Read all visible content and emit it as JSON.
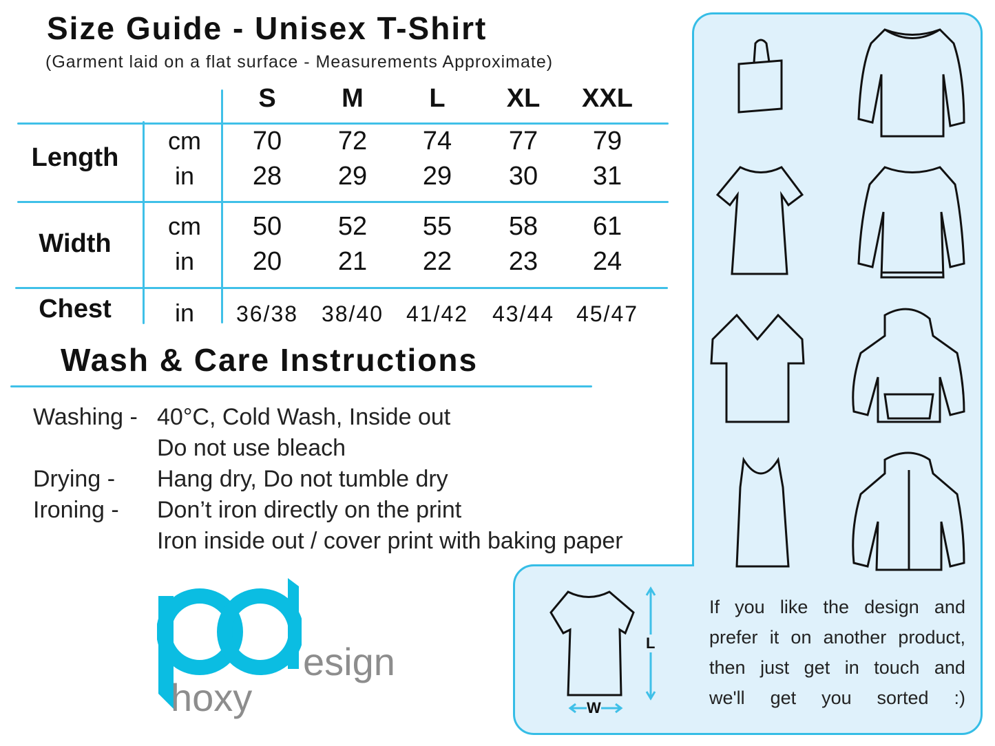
{
  "title": "Size Guide - Unisex T-Shirt",
  "subtitle": "(Garment laid on a flat surface - Measurements Approximate)",
  "sizes": [
    "S",
    "M",
    "L",
    "XL",
    "XXL"
  ],
  "rows": {
    "length": {
      "label": "Length",
      "cm_unit": "cm",
      "in_unit": "in",
      "cm": [
        "70",
        "72",
        "74",
        "77",
        "79"
      ],
      "in": [
        "28",
        "29",
        "29",
        "30",
        "31"
      ]
    },
    "width": {
      "label": "Width",
      "cm_unit": "cm",
      "in_unit": "in",
      "cm": [
        "50",
        "52",
        "55",
        "58",
        "61"
      ],
      "in": [
        "20",
        "21",
        "22",
        "23",
        "24"
      ]
    },
    "chest": {
      "label": "Chest",
      "in_unit": "in",
      "in": [
        "36/38",
        "38/40",
        "41/42",
        "43/44",
        "45/47"
      ]
    }
  },
  "care": {
    "heading": "Wash & Care Instructions",
    "items": [
      {
        "label": "Washing -",
        "value": "40°C, Cold Wash, Inside out"
      },
      {
        "label": "",
        "value": "Do not use bleach"
      },
      {
        "label": "Drying -",
        "value": "Hang dry, Do not tumble dry"
      },
      {
        "label": "Ironing -",
        "value": "Don’t iron directly on the print"
      },
      {
        "label": "",
        "value": "Iron inside out / cover print with baking paper"
      }
    ]
  },
  "logo": {
    "pd": "pd",
    "design": "esign",
    "phoxy": "hoxy"
  },
  "diagram": {
    "length_label": "L",
    "width_label": "W"
  },
  "message": [
    "If you like the design and",
    "prefer it on another product,",
    "then just get in touch and",
    "we'll get you sorted :)"
  ],
  "colors": {
    "accent": "#3fc0e8",
    "panel": "#dff1fb",
    "logo_blue": "#0bbde2",
    "logo_grey": "#8d8d8d"
  }
}
